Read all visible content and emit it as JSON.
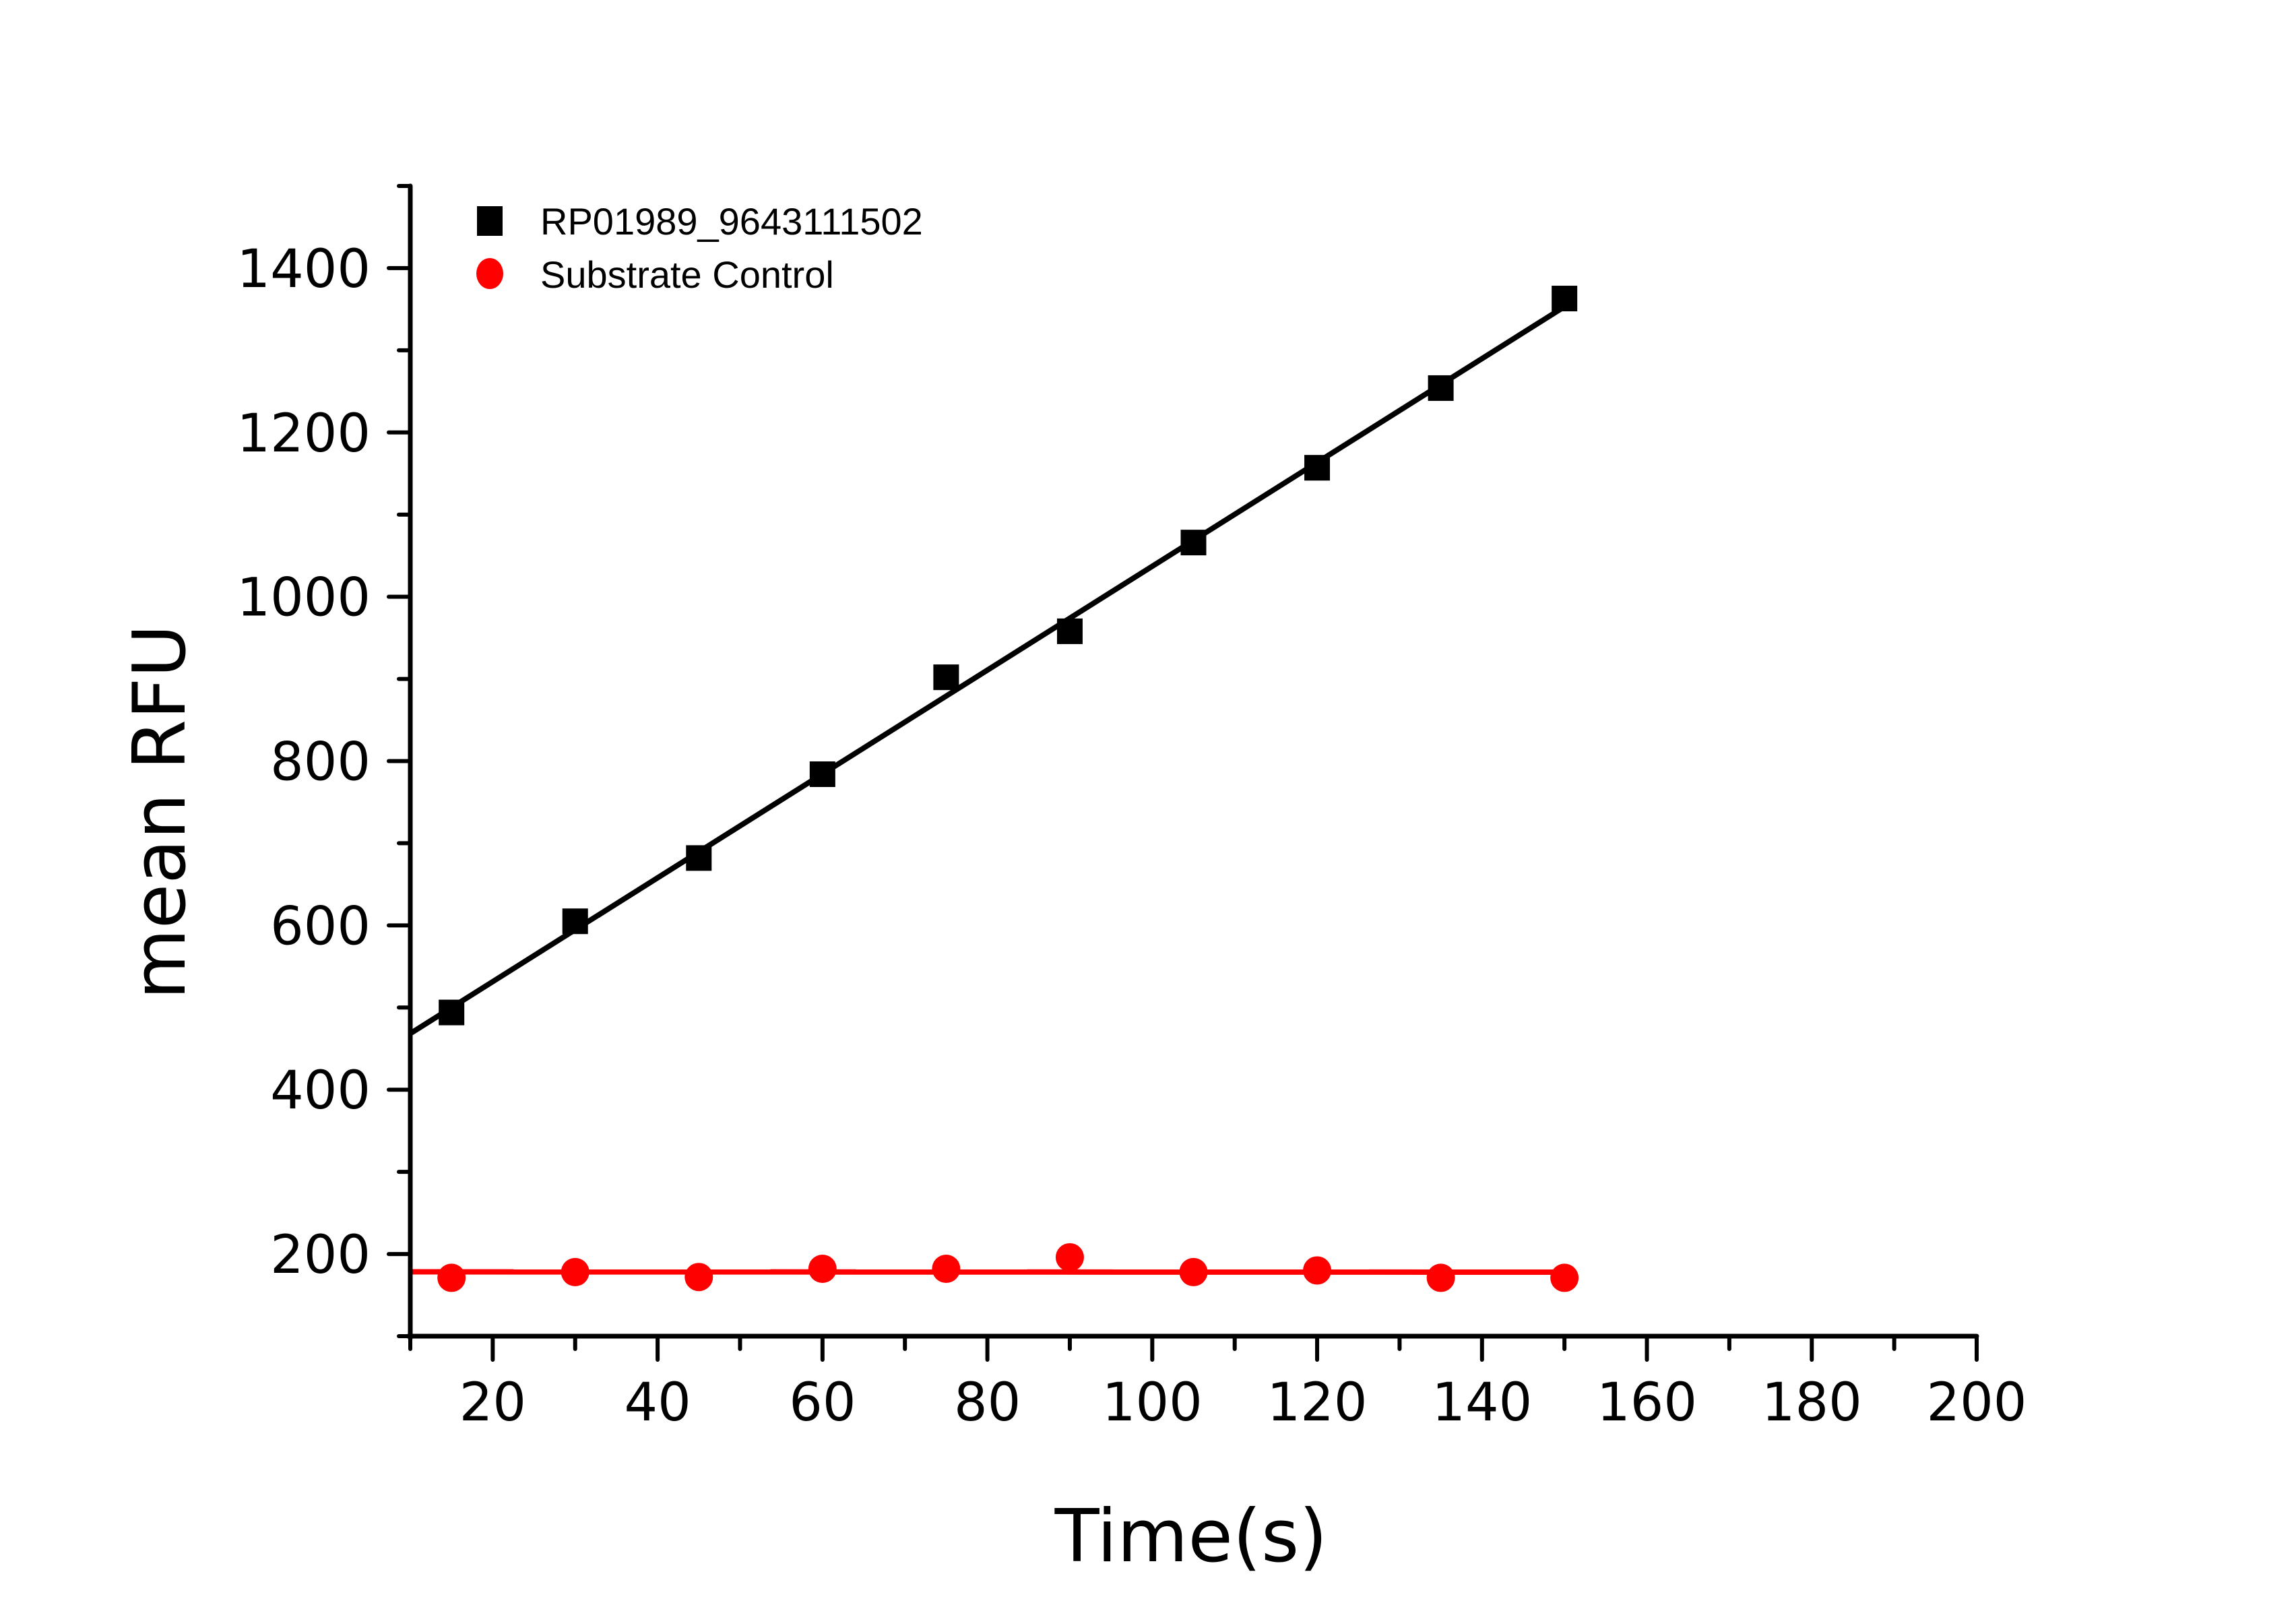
{
  "chart_data": {
    "type": "scatter",
    "title": "",
    "xlabel": "Time(s)",
    "ylabel": "mean RFU",
    "xlim": [
      10,
      200
    ],
    "ylim": [
      100,
      1500
    ],
    "x_ticks": [
      20,
      40,
      60,
      80,
      100,
      120,
      140,
      160,
      180,
      200
    ],
    "x_tick_labels": [
      "20",
      "40",
      "60",
      "80",
      "100",
      "120",
      "140",
      "160",
      "180",
      "200"
    ],
    "y_ticks": [
      200,
      400,
      600,
      800,
      1000,
      1200,
      1400
    ],
    "y_tick_labels": [
      "200",
      "400",
      "600",
      "800",
      "1000",
      "1200",
      "1400"
    ],
    "x_minor_step": 10,
    "y_minor_step": 100,
    "grid": false,
    "legend_position": "top-left",
    "x": [
      15,
      30,
      45,
      60,
      75,
      90,
      105,
      120,
      135,
      150
    ],
    "series": [
      {
        "name": "RP01989_9643111502",
        "marker": "square",
        "color": "#000000",
        "values": [
          494,
          605,
          682,
          784,
          902,
          958,
          1066,
          1157,
          1254,
          1363
        ],
        "fit": "linear"
      },
      {
        "name": "Substrate Control",
        "marker": "circle",
        "color": "#ff0000",
        "values": [
          171,
          178,
          172,
          182,
          182,
          196,
          178,
          180,
          171,
          171
        ],
        "fit": "linear"
      }
    ]
  }
}
